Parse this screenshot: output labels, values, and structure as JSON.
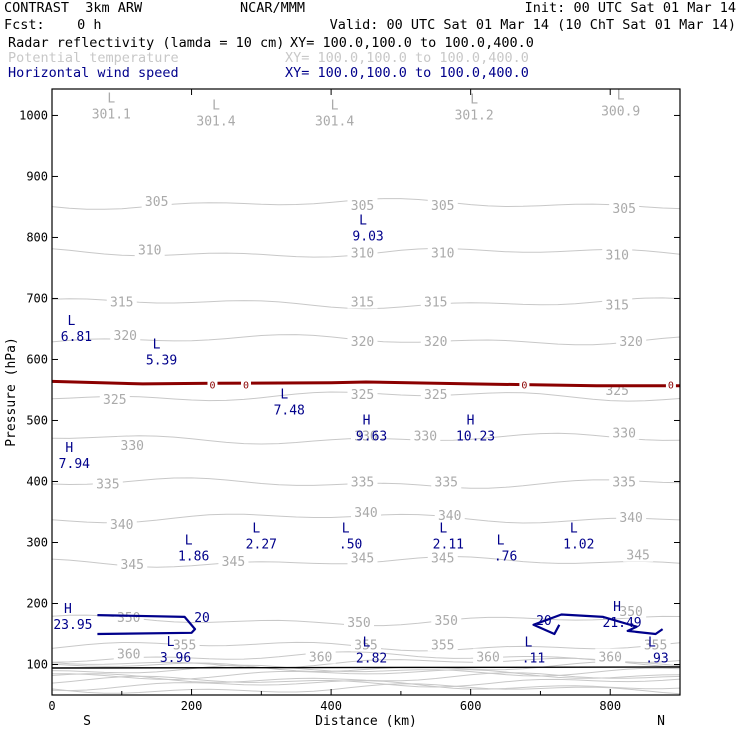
{
  "header": {
    "model": "CONTRAST  3km ARW",
    "center": "NCAR/MMM",
    "init": "Init: 00 UTC Sat 01 Mar 14",
    "fcst": "Fcst:    0 h",
    "valid": "Valid: 00 UTC Sat 01 Mar 14 (10 ChT Sat 01 Mar 14)",
    "fields": [
      {
        "name": "Radar reflectivity (lamda = 10 cm)",
        "xy": "XY= 100.0,100.0 to 100.0,400.0",
        "color": "#000000"
      },
      {
        "name": "Potential temperature",
        "xy": "XY= 100.0,100.0 to 100.0,400.0",
        "color": "#c8c8c8"
      },
      {
        "name": "Horizontal wind speed",
        "xy": "XY= 100.0,100.0 to 100.0,400.0",
        "color": "#00008b"
      }
    ]
  },
  "chart_data": {
    "type": "contour",
    "xlabel": "Distance (km)",
    "ylabel": "Pressure (hPa)",
    "xlim": [
      0,
      900
    ],
    "ylim": [
      1045,
      50
    ],
    "x_ticks": [
      0,
      200,
      400,
      600,
      800
    ],
    "y_ticks": [
      100,
      200,
      300,
      400,
      500,
      600,
      700,
      800,
      900,
      1000
    ],
    "x_end_labels": {
      "left": "S",
      "right": "N"
    },
    "theta_labels": [
      {
        "text": "360",
        "x": 110,
        "p": 118
      },
      {
        "text": "360",
        "x": 385,
        "p": 113
      },
      {
        "text": "360",
        "x": 625,
        "p": 113
      },
      {
        "text": "360",
        "x": 800,
        "p": 113
      },
      {
        "text": "355",
        "x": 190,
        "p": 133
      },
      {
        "text": "355",
        "x": 450,
        "p": 133
      },
      {
        "text": "355",
        "x": 560,
        "p": 133
      },
      {
        "text": "355",
        "x": 865,
        "p": 133
      },
      {
        "text": "350",
        "x": 110,
        "p": 178
      },
      {
        "text": "350",
        "x": 440,
        "p": 170
      },
      {
        "text": "350",
        "x": 565,
        "p": 173
      },
      {
        "text": "350",
        "x": 830,
        "p": 188
      },
      {
        "text": "345",
        "x": 115,
        "p": 265
      },
      {
        "text": "345",
        "x": 260,
        "p": 270
      },
      {
        "text": "345",
        "x": 445,
        "p": 275
      },
      {
        "text": "345",
        "x": 560,
        "p": 275
      },
      {
        "text": "345",
        "x": 840,
        "p": 280
      },
      {
        "text": "340",
        "x": 100,
        "p": 330
      },
      {
        "text": "340",
        "x": 450,
        "p": 350
      },
      {
        "text": "340",
        "x": 570,
        "p": 345
      },
      {
        "text": "340",
        "x": 830,
        "p": 342
      },
      {
        "text": "335",
        "x": 80,
        "p": 397
      },
      {
        "text": "335",
        "x": 445,
        "p": 400
      },
      {
        "text": "335",
        "x": 565,
        "p": 400
      },
      {
        "text": "335",
        "x": 820,
        "p": 400
      },
      {
        "text": "330",
        "x": 115,
        "p": 460
      },
      {
        "text": "330",
        "x": 450,
        "p": 475
      },
      {
        "text": "330",
        "x": 535,
        "p": 475
      },
      {
        "text": "330",
        "x": 820,
        "p": 480
      },
      {
        "text": "325",
        "x": 90,
        "p": 535
      },
      {
        "text": "325",
        "x": 445,
        "p": 543
      },
      {
        "text": "325",
        "x": 550,
        "p": 543
      },
      {
        "text": "325",
        "x": 810,
        "p": 550
      },
      {
        "text": "320",
        "x": 105,
        "p": 640
      },
      {
        "text": "320",
        "x": 445,
        "p": 630
      },
      {
        "text": "320",
        "x": 550,
        "p": 630
      },
      {
        "text": "320",
        "x": 830,
        "p": 630
      },
      {
        "text": "315",
        "x": 100,
        "p": 695
      },
      {
        "text": "315",
        "x": 445,
        "p": 695
      },
      {
        "text": "315",
        "x": 550,
        "p": 695
      },
      {
        "text": "315",
        "x": 810,
        "p": 690
      },
      {
        "text": "310",
        "x": 140,
        "p": 780
      },
      {
        "text": "310",
        "x": 445,
        "p": 775
      },
      {
        "text": "310",
        "x": 560,
        "p": 775
      },
      {
        "text": "310",
        "x": 810,
        "p": 772
      },
      {
        "text": "305",
        "x": 150,
        "p": 860
      },
      {
        "text": "305",
        "x": 445,
        "p": 853
      },
      {
        "text": "305",
        "x": 560,
        "p": 853
      },
      {
        "text": "305",
        "x": 820,
        "p": 848
      }
    ],
    "theta_extrema": [
      {
        "type": "L",
        "value": "301.1",
        "x": 85,
        "p": 1005
      },
      {
        "type": "L",
        "value": "301.4",
        "x": 235,
        "p": 993
      },
      {
        "type": "L",
        "value": "301.4",
        "x": 405,
        "p": 993
      },
      {
        "type": "L",
        "value": "301.2",
        "x": 605,
        "p": 1003
      },
      {
        "type": "L",
        "value": "300.9",
        "x": 815,
        "p": 1010
      }
    ],
    "wind_extrema": [
      {
        "type": "L",
        "value": "3.96",
        "x": 177,
        "p": 114
      },
      {
        "type": "L",
        "value": "2.82",
        "x": 458,
        "p": 113
      },
      {
        "type": "L",
        "value": ".11",
        "x": 690,
        "p": 113
      },
      {
        "type": "L",
        "value": ".93",
        "x": 867,
        "p": 113
      },
      {
        "type": "H",
        "value": "23.95",
        "x": 30,
        "p": 168
      },
      {
        "type": "H",
        "value": "21.49",
        "x": 817,
        "p": 171
      },
      {
        "type": "L",
        "value": "1.86",
        "x": 203,
        "p": 280
      },
      {
        "type": "L",
        "value": "2.27",
        "x": 300,
        "p": 300
      },
      {
        "type": "L",
        "value": ".50",
        "x": 428,
        "p": 300
      },
      {
        "type": "L",
        "value": "2.11",
        "x": 568,
        "p": 300
      },
      {
        "type": "L",
        "value": ".76",
        "x": 650,
        "p": 280
      },
      {
        "type": "L",
        "value": "1.02",
        "x": 755,
        "p": 300
      },
      {
        "type": "H",
        "value": "7.94",
        "x": 32,
        "p": 432
      },
      {
        "type": "H",
        "value": "9.63",
        "x": 458,
        "p": 477
      },
      {
        "type": "H",
        "value": "10.23",
        "x": 607,
        "p": 477
      },
      {
        "type": "L",
        "value": "7.48",
        "x": 340,
        "p": 520
      },
      {
        "type": "L",
        "value": "5.39",
        "x": 157,
        "p": 602
      },
      {
        "type": "L",
        "value": "6.81",
        "x": 35,
        "p": 640
      },
      {
        "type": "L",
        "value": "9.03",
        "x": 453,
        "p": 805
      }
    ],
    "wind_contours": [
      {
        "level": "20",
        "label_x": 215,
        "label_p": 178,
        "points": [
          [
            65,
            150
          ],
          [
            200,
            152
          ],
          [
            205,
            158
          ],
          [
            190,
            178
          ],
          [
            65,
            181
          ]
        ]
      },
      {
        "level": "20",
        "label_x": 705,
        "label_p": 173,
        "points": [
          [
            727,
            165
          ],
          [
            720,
            150
          ],
          [
            690,
            165
          ],
          [
            730,
            182
          ],
          [
            790,
            178
          ],
          [
            838,
            162
          ],
          [
            825,
            155
          ],
          [
            865,
            150
          ],
          [
            875,
            158
          ]
        ]
      }
    ],
    "freezing_level": {
      "value": "0",
      "label_x": [
        230,
        278,
        677,
        887
      ],
      "points": [
        [
          0,
          564
        ],
        [
          130,
          560
        ],
        [
          230,
          561
        ],
        [
          400,
          562
        ],
        [
          450,
          563
        ],
        [
          600,
          560
        ],
        [
          780,
          557
        ],
        [
          900,
          557
        ]
      ]
    }
  }
}
